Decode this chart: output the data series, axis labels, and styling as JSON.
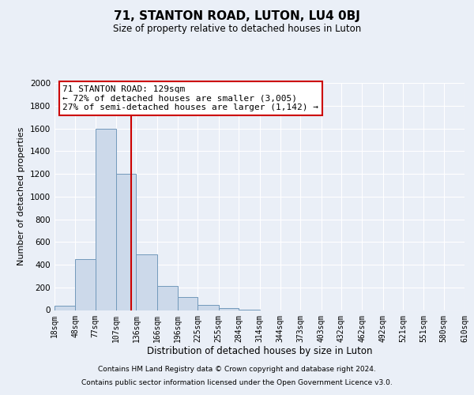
{
  "title": "71, STANTON ROAD, LUTON, LU4 0BJ",
  "subtitle": "Size of property relative to detached houses in Luton",
  "xlabel": "Distribution of detached houses by size in Luton",
  "ylabel": "Number of detached properties",
  "bin_edges": [
    18,
    48,
    77,
    107,
    136,
    166,
    196,
    225,
    255,
    284,
    314,
    344,
    373,
    403,
    432,
    462,
    492,
    521,
    551,
    580,
    610
  ],
  "bin_counts": [
    35,
    450,
    1600,
    1200,
    490,
    210,
    115,
    45,
    15,
    5,
    0,
    0,
    0,
    0,
    0,
    0,
    0,
    0,
    0,
    0
  ],
  "property_line_x": 129,
  "property_line_label": "71 STANTON ROAD: 129sqm",
  "annotation_line1": "← 72% of detached houses are smaller (3,005)",
  "annotation_line2": "27% of semi-detached houses are larger (1,142) →",
  "bar_color": "#ccd9ea",
  "bar_edge_color": "#7299bb",
  "line_color": "#cc0000",
  "ylim": [
    0,
    2000
  ],
  "yticks": [
    0,
    200,
    400,
    600,
    800,
    1000,
    1200,
    1400,
    1600,
    1800,
    2000
  ],
  "tick_labels": [
    "18sqm",
    "48sqm",
    "77sqm",
    "107sqm",
    "136sqm",
    "166sqm",
    "196sqm",
    "225sqm",
    "255sqm",
    "284sqm",
    "314sqm",
    "344sqm",
    "373sqm",
    "403sqm",
    "432sqm",
    "462sqm",
    "492sqm",
    "521sqm",
    "551sqm",
    "580sqm",
    "610sqm"
  ],
  "annotation_box_color": "#ffffff",
  "annotation_box_edge": "#cc0000",
  "footer_line1": "Contains HM Land Registry data © Crown copyright and database right 2024.",
  "footer_line2": "Contains public sector information licensed under the Open Government Licence v3.0.",
  "background_color": "#eaeff7",
  "plot_bg_color": "#eaeff7",
  "grid_color": "#ffffff",
  "title_fontsize": 11,
  "subtitle_fontsize": 8.5,
  "ylabel_fontsize": 8,
  "xlabel_fontsize": 8.5,
  "tick_fontsize": 7,
  "ytick_fontsize": 7.5,
  "footer_fontsize": 6.5,
  "annot_fontsize": 8
}
